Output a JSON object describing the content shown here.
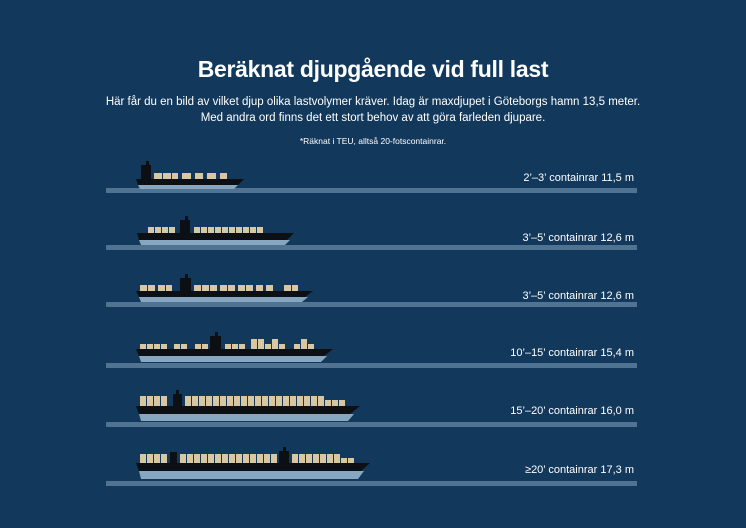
{
  "header": {
    "title": "Beräknat djupgående vid full last",
    "subtitle_line1": "Här får du en bild av vilket djup olika lastvolymer kräver. Idag är maxdjupet i Göteborgs hamn 13,5 meter.",
    "subtitle_line2": "Med andra ord finns det ett stort behov av att göra farleden djupare.",
    "note": "*Räknat i TEU, alltså 20-fotscontainrar."
  },
  "colors": {
    "background": "#12385c",
    "waterline": "#4f7390",
    "hull": "#0c0f13",
    "underwater_hull": "#86a7bf",
    "container": "#d8c7a0",
    "text": "#ffffff"
  },
  "ships": [
    {
      "label": "2’–3’ containrar 11,5 m"
    },
    {
      "label": "3’–5’ containrar 12,6 m"
    },
    {
      "label": "3’–5’ containrar 12,6 m"
    },
    {
      "label": "10’–15’ containrar 15,4 m"
    },
    {
      "label": "15’–20’ containrar 16,0 m"
    },
    {
      "label": "≥20’ containrar 17,3 m"
    }
  ]
}
